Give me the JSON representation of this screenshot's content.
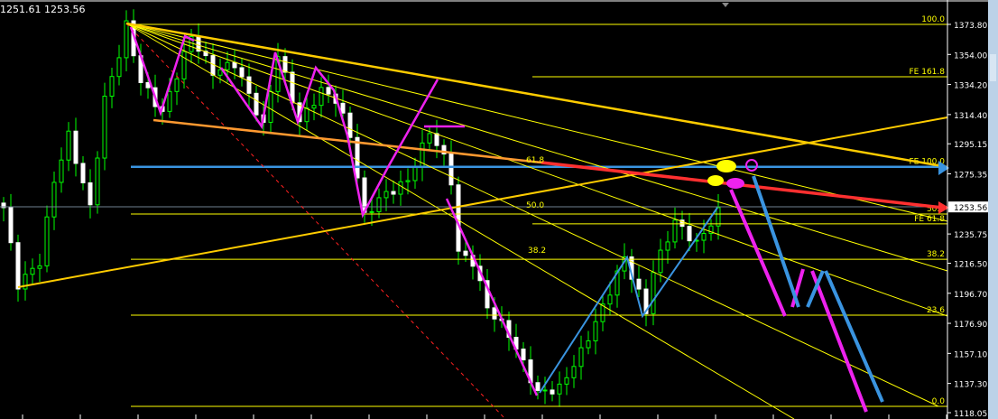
{
  "header": {
    "ohlc_text": "1251.61 1253.56"
  },
  "chart_data": {
    "type": "candlestick",
    "y_axis": {
      "range": [
        1118.05,
        1373.8
      ],
      "ticks": [
        "1373.80",
        "1354.00",
        "1334.20",
        "1314.40",
        "1295.15",
        "1275.35",
        "1235.75",
        "1216.50",
        "1196.70",
        "1176.90",
        "1157.10",
        "1137.30",
        "1118.05"
      ],
      "position": "right"
    },
    "current_price": "1253.56",
    "swing_points": [
      {
        "bar": 0,
        "price": 1253.1
      },
      {
        "bar": 2,
        "price": 1202.5
      },
      {
        "bar": 5,
        "price": 1217.4
      },
      {
        "bar": 7,
        "price": 1270.9
      },
      {
        "bar": 9,
        "price": 1300.6
      },
      {
        "bar": 12,
        "price": 1253.1
      },
      {
        "bar": 14,
        "price": 1324.4
      },
      {
        "bar": 16,
        "price": 1354.2
      },
      {
        "bar": 17,
        "price": 1373.2
      },
      {
        "bar": 19,
        "price": 1336.3
      },
      {
        "bar": 22,
        "price": 1315.5
      },
      {
        "bar": 26,
        "price": 1366.1
      },
      {
        "bar": 29,
        "price": 1342.3
      },
      {
        "bar": 32,
        "price": 1348.2
      },
      {
        "bar": 36,
        "price": 1306.6
      },
      {
        "bar": 38,
        "price": 1354.2
      },
      {
        "bar": 41,
        "price": 1309.6
      },
      {
        "bar": 44,
        "price": 1330.4
      },
      {
        "bar": 46,
        "price": 1324.4
      },
      {
        "bar": 48,
        "price": 1300.6
      },
      {
        "bar": 50,
        "price": 1247.1
      },
      {
        "bar": 52,
        "price": 1259.0
      },
      {
        "bar": 56,
        "price": 1270.9
      },
      {
        "bar": 59,
        "price": 1303.6
      },
      {
        "bar": 61,
        "price": 1285.8
      },
      {
        "bar": 62,
        "price": 1270.9
      },
      {
        "bar": 63,
        "price": 1223.3
      },
      {
        "bar": 65,
        "price": 1217.4
      },
      {
        "bar": 67,
        "price": 1187.6
      },
      {
        "bar": 70,
        "price": 1169.8
      },
      {
        "bar": 74,
        "price": 1131.1
      },
      {
        "bar": 77,
        "price": 1134.1
      },
      {
        "bar": 80,
        "price": 1157.9
      },
      {
        "bar": 83,
        "price": 1187.6
      },
      {
        "bar": 86,
        "price": 1220.3
      },
      {
        "bar": 89,
        "price": 1184.7
      },
      {
        "bar": 90,
        "price": 1211.4
      },
      {
        "bar": 93,
        "price": 1244.1
      },
      {
        "bar": 96,
        "price": 1229.3
      },
      {
        "bar": 99,
        "price": 1250.1
      }
    ],
    "fib_levels": [
      {
        "label": "100.0",
        "price": 1373.8
      },
      {
        "label": "FE 161.8",
        "price": 1339.3
      },
      {
        "label": "FE 100.0",
        "price": 1280.0
      },
      {
        "label": "50.0",
        "price": 1248.9
      },
      {
        "label": "FE 61.8",
        "price": 1242.4
      },
      {
        "label": "38.2",
        "price": 1219.1
      },
      {
        "label": "23.6",
        "price": 1182.3
      },
      {
        "label": "0.0",
        "price": 1122.2
      }
    ],
    "fan_labels": [
      "61.8",
      "50.0",
      "38.2"
    ],
    "colors": {
      "bull": "#00ff00",
      "bear": "#ffffff",
      "fib": "#ffff00",
      "trend": "#ffcc00",
      "red": "#ff3030",
      "blue": "#3a94e0",
      "magenta": "#ee22ee"
    }
  }
}
